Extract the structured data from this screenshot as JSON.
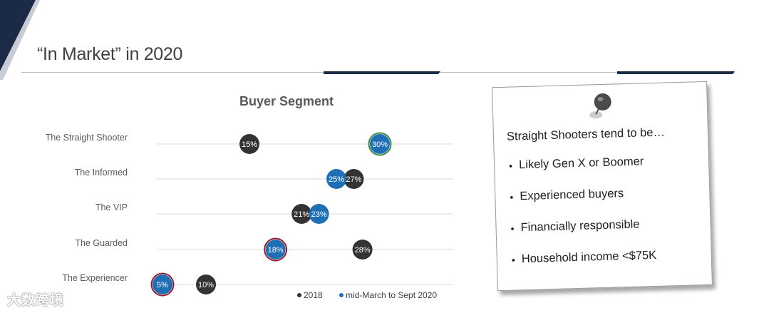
{
  "slide": {
    "title": "“In Market” in 2020"
  },
  "colors": {
    "navy": "#1b2a45",
    "series_2018": "#333333",
    "series_2020": "#1f6fb5",
    "ring_red": "#9b1b30",
    "ring_green": "#3d8b3d"
  },
  "chart_data": {
    "type": "scatter",
    "title": "Buyer Segment",
    "categories": [
      "The Straight Shooter",
      "The Informed",
      "The VIP",
      "The Guarded",
      "The Experiencer"
    ],
    "series": [
      {
        "name": "2018",
        "values": [
          15,
          27,
          21,
          28,
          10
        ],
        "labels": [
          "15%",
          "27%",
          "21%",
          "28%",
          "10%"
        ]
      },
      {
        "name": "mid-March to Sept 2020",
        "values": [
          30,
          25,
          23,
          18,
          5
        ],
        "labels": [
          "30%",
          "25%",
          "23%",
          "18%",
          "5%"
        ]
      }
    ],
    "highlight_rings": [
      "green",
      "none",
      "none",
      "red",
      "red"
    ],
    "legend": {
      "placement": "bottom-right",
      "items": [
        "2018",
        "mid-March to Sept 2020"
      ]
    },
    "grid": true
  },
  "note": {
    "heading": "Straight Shooters tend to be…",
    "bullets": [
      "Likely Gen X or Boomer",
      "Experienced buyers",
      "Financially responsible",
      "Household income <$75K"
    ]
  },
  "watermark": {
    "text": "大数跨境"
  }
}
